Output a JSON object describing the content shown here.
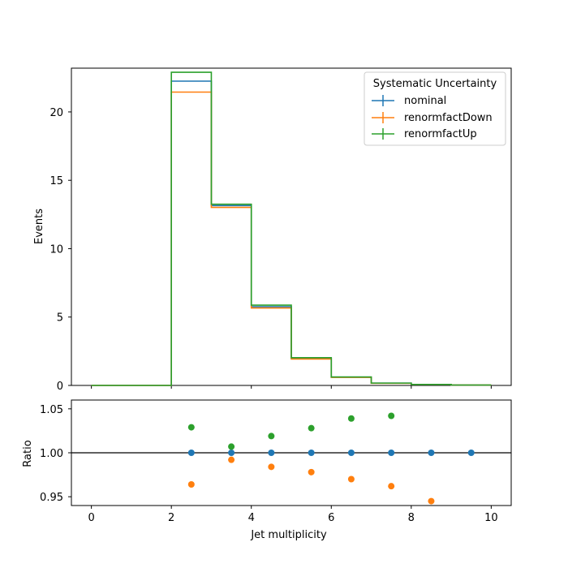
{
  "chart_data": [
    {
      "type": "step",
      "ylabel": "Events",
      "ylim": [
        0,
        23.2
      ],
      "xlim": [
        -0.5,
        10.5
      ],
      "yticks": [
        0,
        5,
        10,
        15,
        20
      ],
      "bin_edges": [
        0,
        1,
        2,
        3,
        4,
        5,
        6,
        7,
        8,
        9,
        10
      ],
      "legend": {
        "title": "Systematic Uncertainty",
        "placement": "upper-right"
      },
      "series": [
        {
          "name": "nominal",
          "color": "#1f77b4",
          "values": [
            0,
            0,
            22.25,
            13.15,
            5.75,
            1.98,
            0.6,
            0.17,
            0.07,
            0.03
          ]
        },
        {
          "name": "renormfactDown",
          "color": "#ff7f0e",
          "values": [
            0,
            0,
            21.45,
            13.02,
            5.66,
            1.93,
            0.59,
            0.16,
            0.07,
            0.03
          ]
        },
        {
          "name": "renormfactUp",
          "color": "#2ca02c",
          "values": [
            0,
            0,
            22.9,
            13.25,
            5.87,
            2.03,
            0.62,
            0.17,
            0.07,
            0.03
          ]
        }
      ]
    },
    {
      "type": "scatter",
      "ylabel": "Ratio",
      "xlabel": "Jet multiplicity",
      "ylim": [
        0.94,
        1.06
      ],
      "xlim": [
        -0.5,
        10.5
      ],
      "yticks": [
        "0.95",
        "1.00",
        "1.05"
      ],
      "xticks": [
        "0",
        "2",
        "4",
        "6",
        "8",
        "10"
      ],
      "reference_line": 1.0,
      "series": [
        {
          "name": "nominal",
          "color": "#1f77b4",
          "x": [
            2.5,
            3.5,
            4.5,
            5.5,
            6.5,
            7.5,
            8.5,
            9.5
          ],
          "y": [
            1.0,
            1.0,
            1.0,
            1.0,
            1.0,
            1.0,
            1.0,
            1.0
          ]
        },
        {
          "name": "renormfactDown",
          "color": "#ff7f0e",
          "x": [
            2.5,
            3.5,
            4.5,
            5.5,
            6.5,
            7.5,
            8.5
          ],
          "y": [
            0.964,
            0.992,
            0.984,
            0.978,
            0.97,
            0.962,
            0.945
          ]
        },
        {
          "name": "renormfactUp",
          "color": "#2ca02c",
          "x": [
            2.5,
            3.5,
            4.5,
            5.5,
            6.5,
            7.5
          ],
          "y": [
            1.029,
            1.007,
            1.019,
            1.028,
            1.039,
            1.042
          ]
        }
      ]
    }
  ]
}
